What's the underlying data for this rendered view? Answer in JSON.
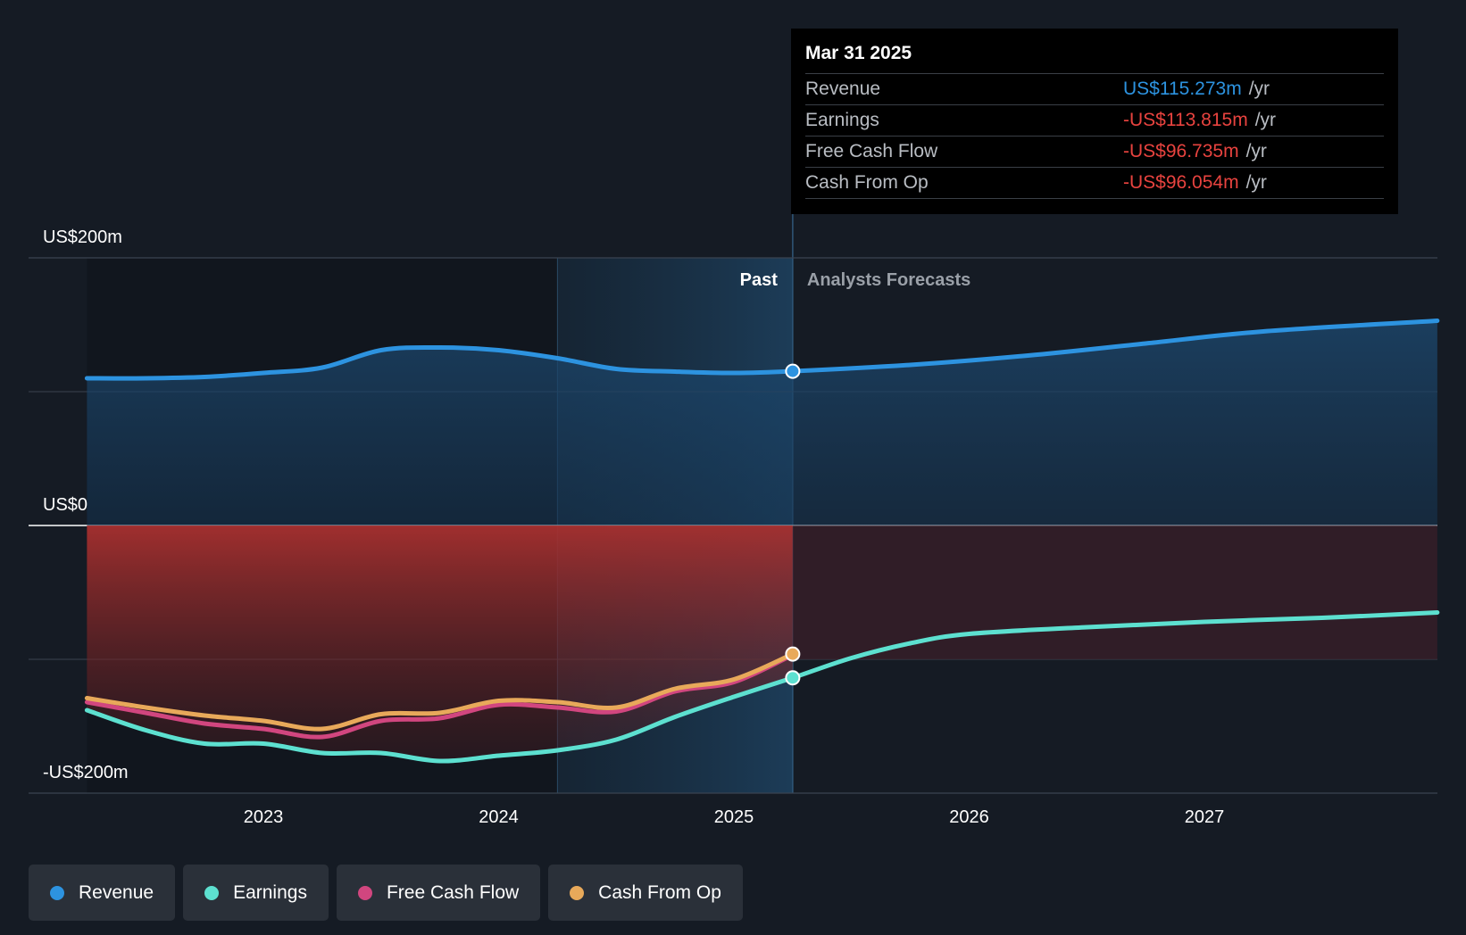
{
  "chart_data": {
    "type": "line",
    "y_tick_labels": [
      "US$200m",
      "US$0",
      "-US$200m"
    ],
    "ylim": [
      -200,
      200
    ],
    "x_tick_labels": [
      "2023",
      "2024",
      "2025",
      "2026",
      "2027"
    ],
    "xlim": [
      2022.25,
      2027.99
    ],
    "period_labels": {
      "past": "Past",
      "forecast": "Analysts Forecasts"
    },
    "forecast_start": 2025.25,
    "series": [
      {
        "name": "Revenue",
        "color": "#2d93e0",
        "x": [
          2022.25,
          2022.5,
          2022.75,
          2023.0,
          2023.25,
          2023.5,
          2023.75,
          2024.0,
          2024.25,
          2024.5,
          2024.75,
          2025.0,
          2025.25,
          2025.75,
          2026.25,
          2026.75,
          2027.25,
          2027.99
        ],
        "y": [
          110,
          110,
          111,
          114,
          118,
          131,
          133,
          131,
          125,
          117,
          115,
          114,
          115.273,
          120,
          127,
          136,
          145,
          153
        ]
      },
      {
        "name": "Earnings",
        "color": "#5de0d0",
        "x": [
          2022.25,
          2022.5,
          2022.75,
          2023.0,
          2023.25,
          2023.5,
          2023.75,
          2024.0,
          2024.25,
          2024.5,
          2024.75,
          2025.0,
          2025.25,
          2025.5,
          2025.75,
          2026.0,
          2026.5,
          2027.0,
          2027.5,
          2027.99
        ],
        "y": [
          -138,
          -153,
          -163,
          -163,
          -170,
          -170,
          -176,
          -172,
          -168,
          -160,
          -143,
          -128,
          -113.815,
          -99,
          -88,
          -81,
          -76,
          -72,
          -69,
          -65
        ]
      },
      {
        "name": "Free Cash Flow",
        "color": "#d1467f",
        "x": [
          2022.25,
          2022.5,
          2022.75,
          2023.0,
          2023.25,
          2023.5,
          2023.75,
          2024.0,
          2024.25,
          2024.5,
          2024.75,
          2025.0,
          2025.25
        ],
        "y": [
          -132,
          -140,
          -148,
          -152,
          -158,
          -146,
          -144,
          -134,
          -136,
          -139,
          -124,
          -117,
          -96.735
        ]
      },
      {
        "name": "Cash From Op",
        "color": "#e8a95a",
        "x": [
          2022.25,
          2022.5,
          2022.75,
          2023.0,
          2023.25,
          2023.5,
          2023.75,
          2024.0,
          2024.25,
          2024.5,
          2024.75,
          2025.0,
          2025.25
        ],
        "y": [
          -129,
          -136,
          -142,
          -146,
          -152,
          -141,
          -140,
          -131,
          -132,
          -136,
          -122,
          -115,
          -96.054
        ]
      }
    ]
  },
  "tooltip": {
    "date": "Mar 31 2025",
    "rows": [
      {
        "label": "Revenue",
        "value": "US$115.273m",
        "unit": "/yr",
        "color": "#2d93e0"
      },
      {
        "label": "Earnings",
        "value": "-US$113.815m",
        "unit": "/yr",
        "color": "#e8433f"
      },
      {
        "label": "Free Cash Flow",
        "value": "-US$96.735m",
        "unit": "/yr",
        "color": "#e8433f"
      },
      {
        "label": "Cash From Op",
        "value": "-US$96.054m",
        "unit": "/yr",
        "color": "#e8433f"
      }
    ]
  },
  "legend": [
    {
      "label": "Revenue",
      "color": "#2d93e0"
    },
    {
      "label": "Earnings",
      "color": "#5de0d0"
    },
    {
      "label": "Free Cash Flow",
      "color": "#d1467f"
    },
    {
      "label": "Cash From Op",
      "color": "#e8a95a"
    }
  ]
}
